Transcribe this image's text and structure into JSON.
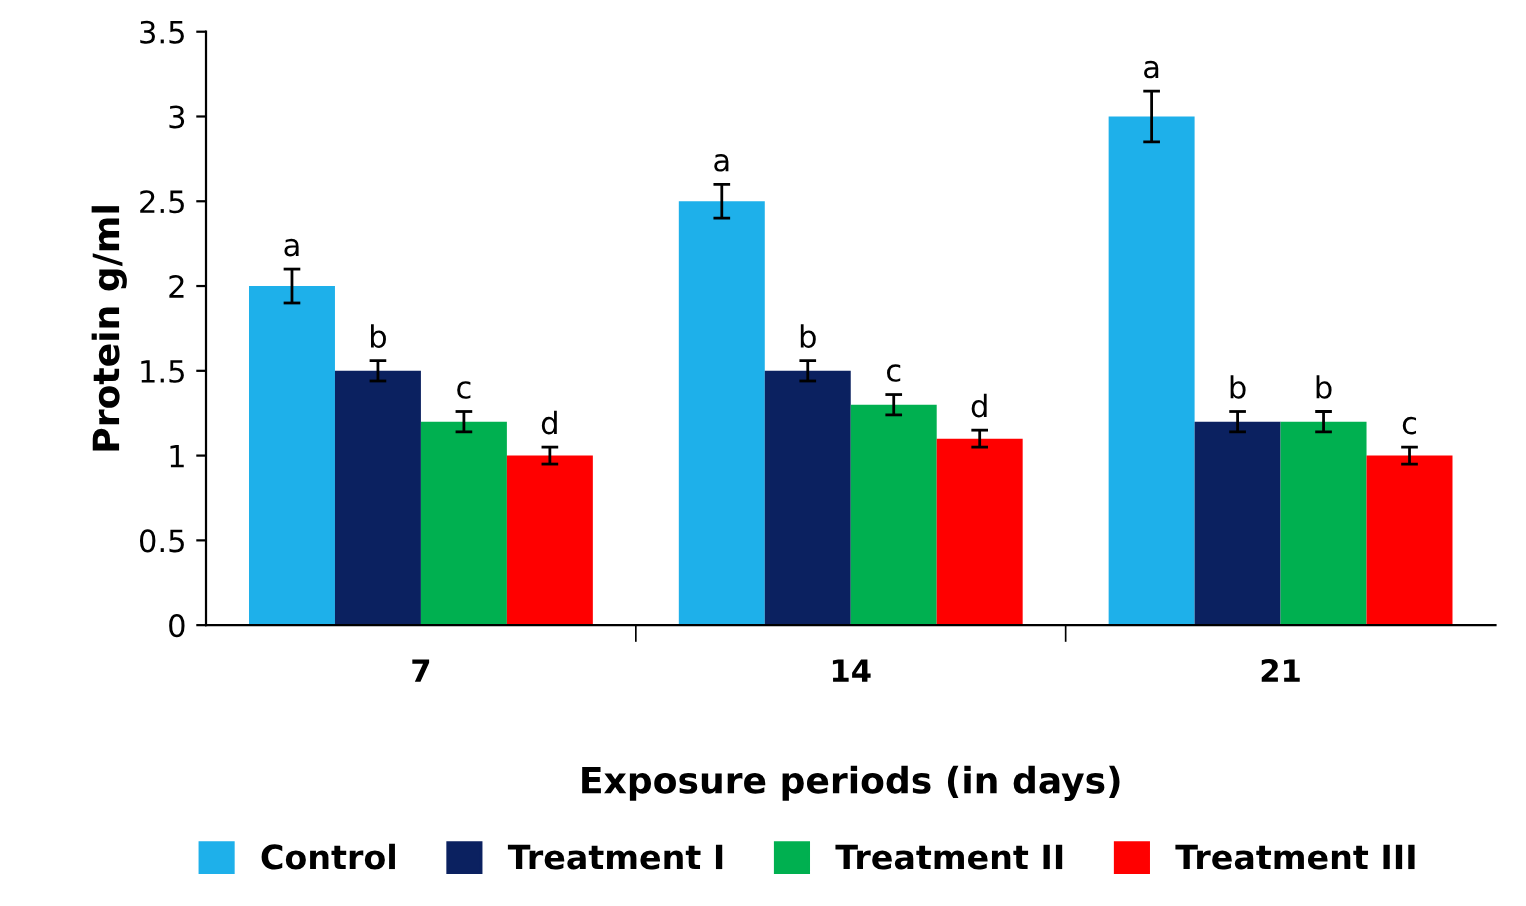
{
  "chart_data": {
    "type": "bar",
    "xlabel": "Exposure periods (in days)",
    "ylabel": "Protein g/ml",
    "categories": [
      "7",
      "14",
      "21"
    ],
    "series": [
      {
        "name": "Control",
        "color": "#1eb0ea",
        "values": [
          2.0,
          2.5,
          3.0
        ],
        "errors": [
          0.1,
          0.1,
          0.15
        ],
        "value_labels": [
          "a",
          "a",
          "a"
        ]
      },
      {
        "name": "Treatment I",
        "color": "#0b2160",
        "values": [
          1.5,
          1.5,
          1.2
        ],
        "errors": [
          0.06,
          0.06,
          0.06
        ],
        "value_labels": [
          "b",
          "b",
          "b"
        ]
      },
      {
        "name": "Treatment II",
        "color": "#00b050",
        "values": [
          1.2,
          1.3,
          1.2
        ],
        "errors": [
          0.06,
          0.06,
          0.06
        ],
        "value_labels": [
          "c",
          "c",
          "b"
        ]
      },
      {
        "name": "Treatment III",
        "color": "#ff0000",
        "values": [
          1.0,
          1.1,
          1.0
        ],
        "errors": [
          0.05,
          0.05,
          0.05
        ],
        "value_labels": [
          "d",
          "d",
          "c"
        ]
      }
    ],
    "ylim": [
      0,
      3.5
    ],
    "yticks": [
      0,
      0.5,
      1,
      1.5,
      2,
      2.5,
      3,
      3.5
    ],
    "grid": false,
    "legend": "bottom"
  }
}
